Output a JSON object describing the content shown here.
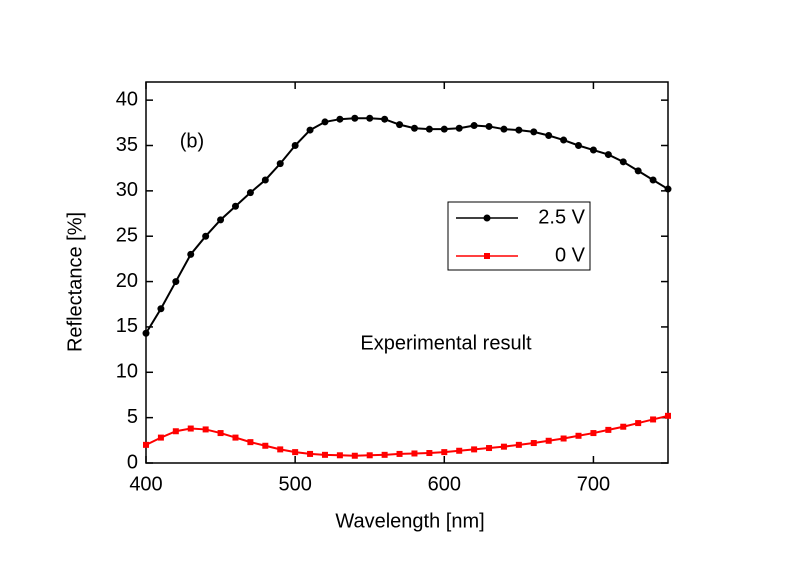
{
  "chart_data": {
    "type": "line",
    "xlabel": "Wavelength [nm]",
    "ylabel": "Reflectance [%]",
    "annotations": [
      "(b)",
      "Experimental result"
    ],
    "x": [
      400,
      410,
      420,
      430,
      440,
      450,
      460,
      470,
      480,
      490,
      500,
      510,
      520,
      530,
      540,
      550,
      560,
      570,
      580,
      590,
      600,
      610,
      620,
      630,
      640,
      650,
      660,
      670,
      680,
      690,
      700,
      710,
      720,
      730,
      740,
      750
    ],
    "series": [
      {
        "name": "2.5 V",
        "color": "#000000",
        "marker": "circle",
        "values": [
          14.3,
          17,
          20,
          23,
          25,
          26.8,
          28.3,
          29.8,
          31.2,
          33,
          35,
          36.7,
          37.6,
          37.9,
          38,
          38,
          37.9,
          37.3,
          36.9,
          36.8,
          36.8,
          36.9,
          37.2,
          37.1,
          36.8,
          36.7,
          36.5,
          36.1,
          35.6,
          35,
          34.5,
          34,
          33.2,
          32.2,
          31.2,
          30.2
        ]
      },
      {
        "name": "0 V",
        "color": "#ff0000",
        "marker": "square",
        "values": [
          2,
          2.8,
          3.5,
          3.8,
          3.7,
          3.3,
          2.8,
          2.3,
          1.9,
          1.5,
          1.2,
          1,
          0.9,
          0.85,
          0.8,
          0.85,
          0.9,
          1,
          1.05,
          1.1,
          1.2,
          1.35,
          1.5,
          1.65,
          1.8,
          2,
          2.2,
          2.45,
          2.7,
          3,
          3.3,
          3.65,
          4,
          4.4,
          4.8,
          5.2
        ]
      }
    ],
    "xlim": [
      400,
      750
    ],
    "xticks": [
      400,
      500,
      600,
      700
    ],
    "ylim": [
      0,
      42
    ],
    "yticks": [
      0,
      5,
      10,
      15,
      20,
      25,
      30,
      35,
      40
    ]
  }
}
